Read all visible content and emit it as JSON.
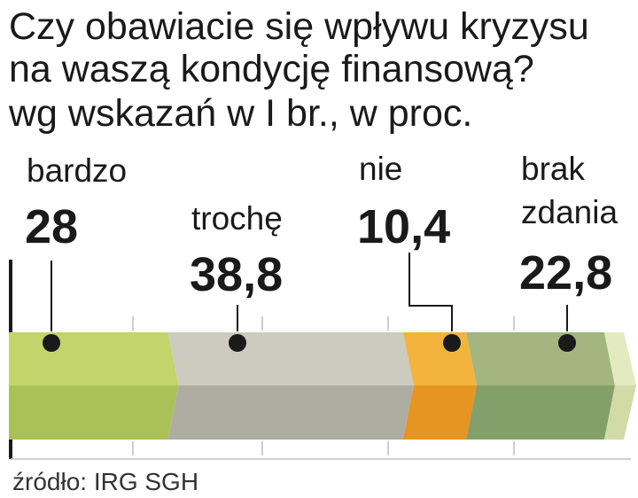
{
  "title_lines": [
    "Czy obawiacie się wpływu kryzysu",
    "na waszą kondycję finansową?",
    "wg wskazań w I br., w proc."
  ],
  "source": "źródło: IRG SGH",
  "colors": {
    "bardzo_top": "#c3d46a",
    "bardzo_bottom": "#a9c157",
    "troche_top": "#cbcbc0",
    "troche_bottom": "#adaea1",
    "nie_top": "#f2b43c",
    "nie_bottom": "#e69422",
    "brak_top": "#a3b67f",
    "brak_bottom": "#83a06a",
    "tip_top": "#e4eac0",
    "tip_bottom": "#d2dba8"
  },
  "chart_data": {
    "type": "bar",
    "orientation": "stacked-horizontal",
    "unit": "%",
    "xlim": [
      0,
      100
    ],
    "categories": [
      "bardzo",
      "trochę",
      "nie",
      "brak zdania"
    ],
    "values": [
      28,
      38.8,
      10.4,
      22.8
    ],
    "value_labels": [
      "28",
      "38,8",
      "10,4",
      "22,8"
    ],
    "label_lines": [
      [
        "bardzo"
      ],
      [
        "trochę"
      ],
      [
        "nie"
      ],
      [
        "brak",
        "zdania"
      ]
    ],
    "grid": true
  }
}
